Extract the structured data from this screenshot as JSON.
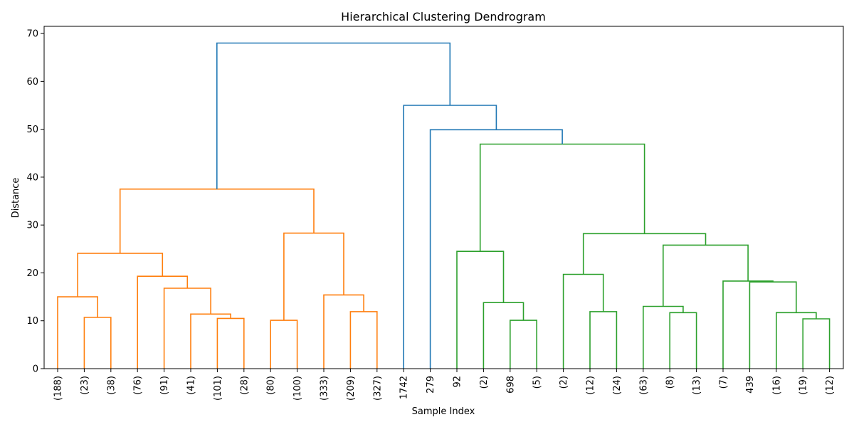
{
  "chart_data": {
    "type": "dendrogram",
    "title": "Hierarchical Clustering Dendrogram",
    "xlabel": "Sample Index",
    "ylabel": "Distance",
    "ylim": [
      0,
      71.5
    ],
    "yticks": [
      0,
      10,
      20,
      30,
      40,
      50,
      60,
      70
    ],
    "grid": false,
    "leaves": [
      "(188)",
      "(23)",
      "(38)",
      "(76)",
      "(91)",
      "(41)",
      "(101)",
      "(28)",
      "(80)",
      "(100)",
      "(333)",
      "(209)",
      "(327)",
      "1742",
      "279",
      "92",
      "(2)",
      "698",
      "(5)",
      "(2)",
      "(12)",
      "(24)",
      "(63)",
      "(8)",
      "(13)",
      "(7)",
      "439",
      "(16)",
      "(19)",
      "(12)"
    ],
    "colors": {
      "orange": "#ff7f0e",
      "green": "#2ca02c",
      "blue": "#1f77b4"
    },
    "merges": [
      {
        "left": 1,
        "right": 2,
        "height": 10.7,
        "color": "orange"
      },
      {
        "left": 0,
        "right": "m0",
        "height": 15.0,
        "color": "orange"
      },
      {
        "left": 6,
        "right": 7,
        "height": 10.5,
        "color": "orange"
      },
      {
        "left": 5,
        "right": "m2",
        "height": 11.4,
        "color": "orange"
      },
      {
        "left": 4,
        "right": "m3",
        "height": 16.8,
        "color": "orange"
      },
      {
        "left": 3,
        "right": "m4",
        "height": 19.3,
        "color": "orange"
      },
      {
        "left": "m1",
        "right": "m5",
        "height": 24.1,
        "color": "orange"
      },
      {
        "left": 8,
        "right": 9,
        "height": 10.1,
        "color": "orange"
      },
      {
        "left": 11,
        "right": 12,
        "height": 11.9,
        "color": "orange"
      },
      {
        "left": 10,
        "right": "m8",
        "height": 15.4,
        "color": "orange"
      },
      {
        "left": "m7",
        "right": "m9",
        "height": 28.3,
        "color": "orange"
      },
      {
        "left": "m6",
        "right": "m10",
        "height": 37.5,
        "color": "orange"
      },
      {
        "left": 17,
        "right": 18,
        "height": 10.1,
        "color": "green"
      },
      {
        "left": 16,
        "right": "m12",
        "height": 13.8,
        "color": "green"
      },
      {
        "left": 15,
        "right": "m13",
        "height": 24.5,
        "color": "green"
      },
      {
        "left": 20,
        "right": 21,
        "height": 11.9,
        "color": "green"
      },
      {
        "left": 19,
        "right": "m15",
        "height": 19.7,
        "color": "green"
      },
      {
        "left": 23,
        "right": 24,
        "height": 11.7,
        "color": "green"
      },
      {
        "left": 22,
        "right": "m17",
        "height": 13.0,
        "color": "green"
      },
      {
        "left": 28,
        "right": 29,
        "height": 10.4,
        "color": "green"
      },
      {
        "left": 27,
        "right": "m19",
        "height": 11.7,
        "color": "green"
      },
      {
        "left": 26,
        "right": "m20",
        "height": 18.1,
        "color": "green"
      },
      {
        "left": 25,
        "right": "m21",
        "height": 18.3,
        "color": "green"
      },
      {
        "left": "m18",
        "right": "m22",
        "height": 25.8,
        "color": "green"
      },
      {
        "left": "m16",
        "right": "m23",
        "height": 28.2,
        "color": "green"
      },
      {
        "left": "m14",
        "right": "m24",
        "height": 46.9,
        "color": "green"
      },
      {
        "left": 14,
        "right": "m25",
        "height": 49.9,
        "color": "blue"
      },
      {
        "left": 13,
        "right": "m26",
        "height": 55.0,
        "color": "blue"
      },
      {
        "left": "m11",
        "right": "m27",
        "height": 68.0,
        "color": "blue"
      }
    ]
  }
}
